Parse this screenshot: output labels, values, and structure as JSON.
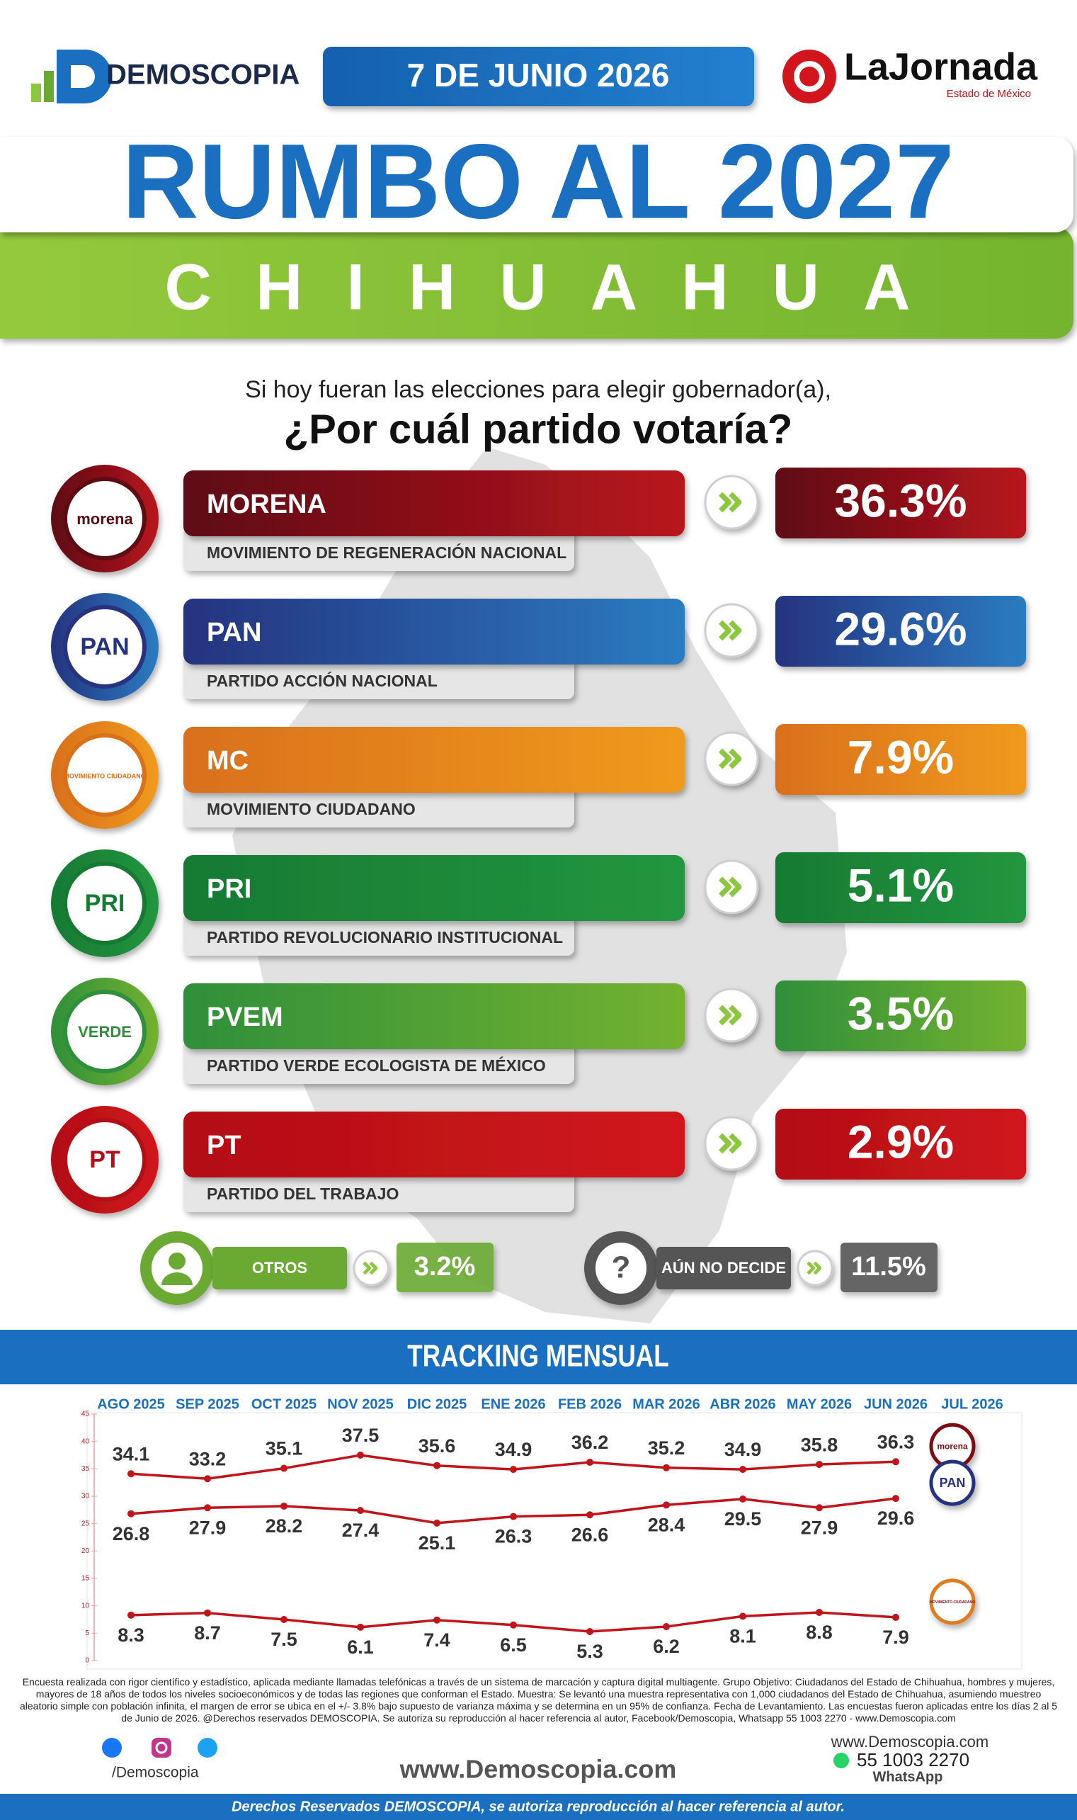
{
  "header": {
    "brand": "DEMOSCOPIA",
    "date": "7 DE JUNIO 2026",
    "partner": "LaJornada",
    "partner_sub": "Estado de México"
  },
  "title": "RUMBO AL 2027",
  "state": "CHIHUAHUA",
  "question": {
    "line1": "Si hoy fueran las elecciones para elegir gobernador(a),",
    "line2": "¿Por cuál partido votaría?"
  },
  "parties": [
    {
      "logo": "morena",
      "name": "MORENA",
      "full": "MOVIMIENTO DE REGENERACIÓN NACIONAL",
      "value": 36.3,
      "value_label": "36.3%",
      "colors": [
        "#5e0c12",
        "#b8141f"
      ]
    },
    {
      "logo": "PAN",
      "name": "PAN",
      "full": "PARTIDO ACCIÓN NACIONAL",
      "value": 29.6,
      "value_label": "29.6%",
      "colors": [
        "#27337f",
        "#2a7cc2"
      ]
    },
    {
      "logo": "MOVIMIENTO CIUDADANO",
      "name": "MC",
      "full": "MOVIMIENTO CIUDADANO",
      "value": 7.9,
      "value_label": "7.9%",
      "colors": [
        "#d9701a",
        "#f09a1e"
      ]
    },
    {
      "logo": "PRI",
      "name": "PRI",
      "full": "PARTIDO REVOLUCIONARIO INSTITUCIONAL",
      "value": 5.1,
      "value_label": "5.1%",
      "colors": [
        "#177a33",
        "#22963f"
      ]
    },
    {
      "logo": "VERDE",
      "name": "PVEM",
      "full": "PARTIDO VERDE ECOLOGISTA DE MÉXICO",
      "value": 3.5,
      "value_label": "3.5%",
      "colors": [
        "#2f8f3a",
        "#74b22f"
      ]
    },
    {
      "logo": "PT",
      "name": "PT",
      "full": "PARTIDO DEL TRABAJO",
      "value": 2.9,
      "value_label": "2.9%",
      "colors": [
        "#b30f16",
        "#d0151c"
      ]
    }
  ],
  "others": {
    "label": "OTROS",
    "value": 3.2,
    "value_label": "3.2%",
    "color": "#6aaa33"
  },
  "undecided": {
    "icon": "?",
    "label": "AÚN NO DECIDE",
    "value": 11.5,
    "value_label": "11.5%",
    "color": "#555555"
  },
  "chart_data": {
    "type": "line",
    "title": "TRACKING MENSUAL",
    "categories": [
      "AGO 2025",
      "SEP 2025",
      "OCT 2025",
      "NOV 2025",
      "DIC 2025",
      "ENE 2026",
      "FEB 2026",
      "MAR 2026",
      "ABR 2026",
      "MAY 2026",
      "JUN 2026",
      "JUL 2026"
    ],
    "series": [
      {
        "name": "morena",
        "color": "#c0151a",
        "values": [
          34.1,
          33.2,
          35.1,
          37.5,
          35.6,
          34.9,
          36.2,
          35.2,
          34.9,
          35.8,
          36.3,
          null
        ]
      },
      {
        "name": "PAN",
        "color": "#c0151a",
        "values": [
          26.8,
          27.9,
          28.2,
          27.4,
          25.1,
          26.3,
          26.6,
          28.4,
          29.5,
          27.9,
          29.6,
          null
        ]
      },
      {
        "name": "MOVIMIENTO CIUDADANO",
        "color": "#c0151a",
        "values": [
          8.3,
          8.7,
          7.5,
          6.1,
          7.4,
          6.5,
          5.3,
          6.2,
          8.1,
          8.8,
          7.9,
          null
        ]
      }
    ],
    "ylim": [
      0,
      45
    ],
    "yticks": [
      0,
      5,
      10,
      15,
      20,
      25,
      30,
      35,
      40,
      45
    ],
    "grid": false
  },
  "footer": {
    "note": "Encuesta realizada con rigor científico y estadístico, aplicada mediante llamadas telefónicas a través de un sistema de marcación y captura digital multiagente. Grupo Objetivo: Ciudadanos del Estado de Chihuahua, hombres y mujeres, mayores de 18 años de todos los niveles socioeconómicos y de todas las regiones que conforman el Estado. Muestra: Se levantó una muestra representativa con 1,000 ciudadanos del Estado de Chihuahua, asumiendo muestreo aleatorio simple con población infinita, el margen de error se ubica en el +/- 3.8% bajo supuesto de varianza máxima y se determina en un 95% de confianza. Fecha de Levantamiento. Las encuestas fueron aplicadas entre los días 2 al 5 de Junio de 2026. @Derechos reservados DEMOSCOPIA. Se autoriza su reproducción al hacer referencia al autor, Facebook/Demoscopia, Whatsapp 55 1003 2270 - www.Demoscopia.com",
    "handle": "/Demoscopia",
    "url": "www.Demoscopia.com",
    "contact_url": "www.Demoscopia.com",
    "phone": "55 1003 2270",
    "phone_label": "WhatsApp",
    "rights": "Derechos Reservados DEMOSCOPIA, se autoriza reproducción al hacer referencia al autor."
  }
}
